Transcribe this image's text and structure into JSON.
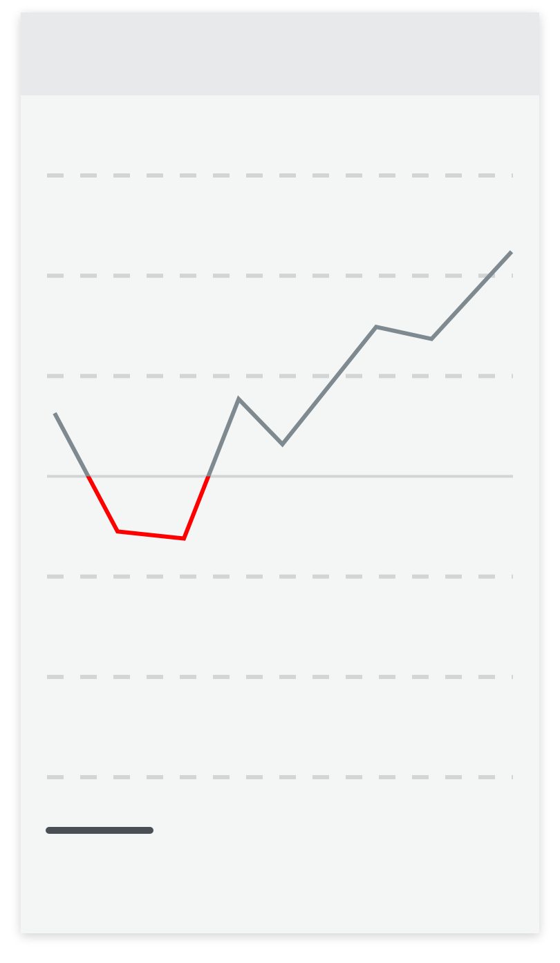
{
  "chart_data": {
    "type": "line",
    "x": [
      0,
      0.92,
      1.89,
      2.69,
      3.33,
      4.7,
      5.51,
      6.68
    ],
    "xlim": [
      0,
      6.68
    ],
    "series": [
      {
        "color": "#7f8a90",
        "negative_color": "#ff0000",
        "values": [
          0.63,
          -0.55,
          -0.62,
          0.77,
          0.32,
          1.49,
          1.37,
          2.24
        ]
      }
    ],
    "ylim": [
      -3,
      3
    ],
    "yticks": [
      -3,
      -2,
      -1,
      0,
      1,
      2,
      3
    ],
    "grid": true
  }
}
